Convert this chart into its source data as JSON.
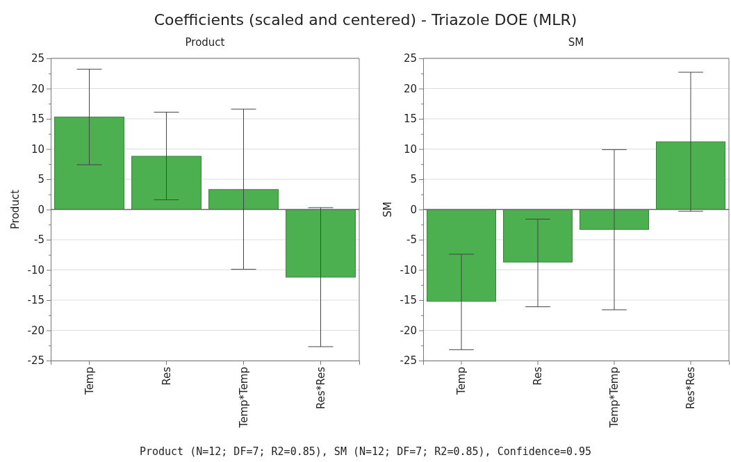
{
  "chart_data": [
    {
      "type": "bar",
      "title": "Coefficients (scaled and centered) - Triazole DOE (MLR)",
      "subtitle": "Product",
      "ylabel": "Product",
      "categories": [
        "Temp",
        "Res",
        "Temp*Temp",
        "Res*Res"
      ],
      "values": [
        15.3,
        8.8,
        3.3,
        -11.2
      ],
      "color": "#4caf50",
      "errors": [
        [
          7.4,
          23.2
        ],
        [
          1.6,
          16.1
        ],
        [
          -9.9,
          16.6
        ],
        [
          -22.7,
          0.3
        ]
      ],
      "ylim": [
        -25,
        25
      ],
      "yticks": [
        -25,
        {
          "value": -22.5,
          "label": null
        },
        -20,
        {
          "value": -17.5,
          "label": null
        },
        -15,
        {
          "value": -12.5,
          "label": null
        },
        -10,
        {
          "value": -7.5,
          "label": null
        },
        -5,
        {
          "value": -2.5,
          "label": null
        },
        0,
        {
          "value": 2.5,
          "label": null
        },
        5,
        {
          "value": 7.5,
          "label": null
        },
        10,
        {
          "value": 12.5,
          "label": null
        },
        15,
        {
          "value": 17.5,
          "label": null
        },
        20,
        {
          "value": 22.5,
          "label": null
        },
        25
      ],
      "grid": "y",
      "annotations": [
        "Product (N=12; DF=7; R2=0.85), SM (N=12; DF=7; R2=0.85), Confidence=0.95"
      ]
    },
    {
      "type": "bar",
      "subtitle": "SM",
      "ylabel": "SM",
      "categories": [
        "Temp",
        "Res",
        "Temp*Temp",
        "Res*Res"
      ],
      "values": [
        -15.2,
        -8.7,
        -3.3,
        11.2
      ],
      "color": "#4caf50",
      "errors": [
        [
          -23.2,
          -7.4
        ],
        [
          -16.1,
          -1.6
        ],
        [
          -16.6,
          9.9
        ],
        [
          -0.3,
          22.7
        ]
      ],
      "ylim": [
        -25,
        25
      ],
      "yticks": [
        -25,
        {
          "value": -22.5,
          "label": null
        },
        -20,
        {
          "value": -17.5,
          "label": null
        },
        -15,
        {
          "value": -12.5,
          "label": null
        },
        -10,
        {
          "value": -7.5,
          "label": null
        },
        -5,
        {
          "value": -2.5,
          "label": null
        },
        0,
        {
          "value": 2.5,
          "label": null
        },
        5,
        {
          "value": 7.5,
          "label": null
        },
        10,
        {
          "value": 12.5,
          "label": null
        },
        15,
        {
          "value": 17.5,
          "label": null
        },
        20,
        {
          "value": 22.5,
          "label": null
        },
        25
      ],
      "grid": "y"
    }
  ]
}
